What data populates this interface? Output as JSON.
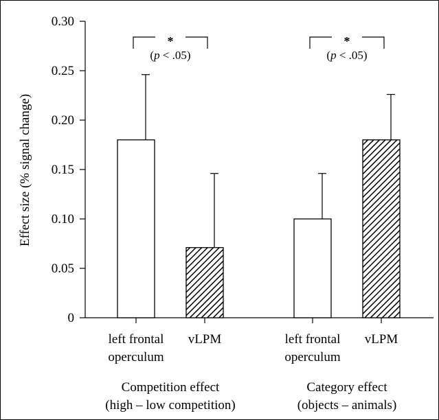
{
  "chart_data": {
    "type": "bar",
    "ylabel": "Effect size (% signal change)",
    "ylim": [
      0,
      0.3
    ],
    "yticks": [
      "0",
      "0.05",
      "0.10",
      "0.15",
      "0.20",
      "0.25",
      "0.30"
    ],
    "groups": [
      {
        "label_line1": "Competition effect",
        "label_line2": "(high – low competition)",
        "significance": {
          "star": "*",
          "text": "(p < .05)"
        },
        "bars": [
          {
            "label_line1": "left frontal",
            "label_line2": "operculum",
            "value": 0.18,
            "error": 0.066,
            "fill": "white"
          },
          {
            "label_line1": "vLPM",
            "label_line2": "",
            "value": 0.071,
            "error": 0.075,
            "fill": "hatched"
          }
        ]
      },
      {
        "label_line1": "Category effect",
        "label_line2": "(objects – animals)",
        "significance": {
          "star": "*",
          "text": "(p < .05)"
        },
        "bars": [
          {
            "label_line1": "left frontal",
            "label_line2": "operculum",
            "value": 0.1,
            "error": 0.046,
            "fill": "white"
          },
          {
            "label_line1": "vLPM",
            "label_line2": "",
            "value": 0.18,
            "error": 0.046,
            "fill": "hatched"
          }
        ]
      }
    ],
    "grid": false,
    "colors": {
      "bar_stroke": "#000000",
      "bar_fill": "#ffffff",
      "hatch": "#000000"
    }
  }
}
